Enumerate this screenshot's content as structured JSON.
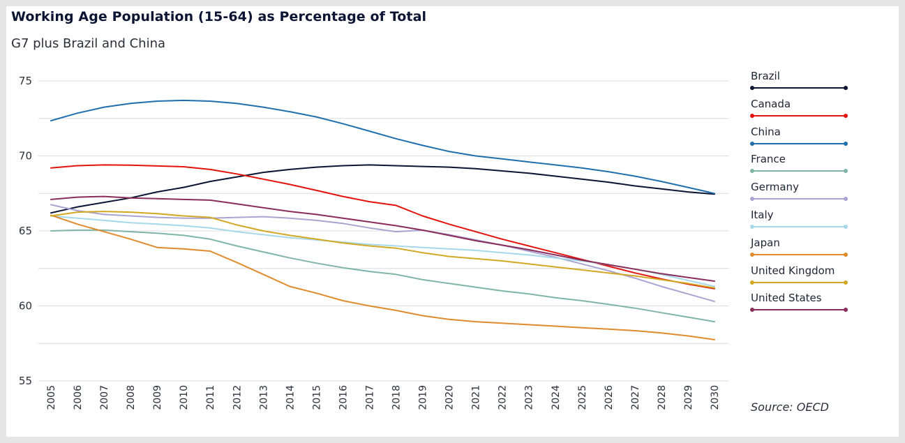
{
  "chart_data": {
    "type": "line",
    "title": "Working Age Population (15-64) as Percentage of Total",
    "subtitle": "G7 plus Brazil and China",
    "xlabel": "",
    "ylabel": "",
    "ylim": [
      55,
      75
    ],
    "yticks": [
      "55",
      "60",
      "65",
      "70",
      "75"
    ],
    "grid": true,
    "legend_placement": "right",
    "x": [
      "2005",
      "2006",
      "2007",
      "2008",
      "2009",
      "2010",
      "2011",
      "2012",
      "2013",
      "2014",
      "2015",
      "2016",
      "2017",
      "2018",
      "2019",
      "2020",
      "2021",
      "2022",
      "2023",
      "2024",
      "2025",
      "2026",
      "2027",
      "2028",
      "2029",
      "2030"
    ],
    "series": [
      {
        "name": "Brazil",
        "color": "#0b1533",
        "values": [
          66.2,
          66.6,
          66.9,
          67.2,
          67.6,
          67.9,
          68.3,
          68.6,
          68.9,
          69.1,
          69.25,
          69.35,
          69.4,
          69.35,
          69.3,
          69.25,
          69.15,
          69.0,
          68.85,
          68.65,
          68.45,
          68.25,
          68.0,
          67.8,
          67.6,
          67.45
        ]
      },
      {
        "name": "Canada",
        "color": "#e3120b",
        "values": [
          69.2,
          69.35,
          69.4,
          69.38,
          69.33,
          69.28,
          69.1,
          68.8,
          68.45,
          68.1,
          67.7,
          67.3,
          66.95,
          66.7,
          66.0,
          65.45,
          64.95,
          64.45,
          64.0,
          63.55,
          63.1,
          62.65,
          62.2,
          61.8,
          61.45,
          61.15
        ]
      },
      {
        "name": "China",
        "color": "#1f6fae",
        "values": [
          72.35,
          72.85,
          73.25,
          73.5,
          73.65,
          73.7,
          73.65,
          73.5,
          73.25,
          72.95,
          72.6,
          72.15,
          71.65,
          71.15,
          70.7,
          70.3,
          70.0,
          69.8,
          69.6,
          69.4,
          69.2,
          68.95,
          68.65,
          68.3,
          67.9,
          67.5
        ]
      },
      {
        "name": "France",
        "color": "#7fb5a8",
        "values": [
          65.0,
          65.05,
          65.05,
          64.95,
          64.85,
          64.7,
          64.45,
          64.0,
          63.6,
          63.2,
          62.85,
          62.55,
          62.3,
          62.1,
          61.75,
          61.5,
          61.25,
          61.0,
          60.8,
          60.55,
          60.35,
          60.1,
          59.85,
          59.55,
          59.25,
          58.95
        ]
      },
      {
        "name": "Germany",
        "color": "#a8a4d2",
        "values": [
          66.75,
          66.35,
          66.1,
          66.0,
          65.9,
          65.85,
          65.85,
          65.9,
          65.95,
          65.85,
          65.7,
          65.5,
          65.2,
          64.95,
          65.05,
          64.75,
          64.4,
          64.05,
          63.65,
          63.25,
          62.8,
          62.35,
          61.85,
          61.3,
          60.8,
          60.3
        ]
      },
      {
        "name": "Italy",
        "color": "#a6d8ea",
        "values": [
          66.0,
          65.85,
          65.7,
          65.55,
          65.45,
          65.35,
          65.2,
          64.95,
          64.75,
          64.55,
          64.4,
          64.25,
          64.1,
          64.0,
          63.9,
          63.8,
          63.7,
          63.55,
          63.4,
          63.2,
          63.0,
          62.75,
          62.45,
          62.1,
          61.7,
          61.3
        ]
      },
      {
        "name": "Japan",
        "color": "#e08a2c",
        "values": [
          66.05,
          65.45,
          64.95,
          64.45,
          63.9,
          63.8,
          63.65,
          62.9,
          62.1,
          61.3,
          60.85,
          60.35,
          60.0,
          59.7,
          59.35,
          59.1,
          58.95,
          58.85,
          58.75,
          58.65,
          58.55,
          58.45,
          58.35,
          58.2,
          58.0,
          57.75
        ]
      },
      {
        "name": "United Kingdom",
        "color": "#d2a722",
        "values": [
          66.0,
          66.25,
          66.3,
          66.25,
          66.15,
          66.0,
          65.9,
          65.4,
          65.0,
          64.7,
          64.45,
          64.2,
          64.0,
          63.85,
          63.55,
          63.3,
          63.15,
          63.0,
          62.8,
          62.6,
          62.4,
          62.2,
          62.0,
          61.75,
          61.5,
          61.2
        ]
      },
      {
        "name": "United States",
        "color": "#8a2c5a",
        "values": [
          67.1,
          67.25,
          67.3,
          67.2,
          67.15,
          67.1,
          67.05,
          66.8,
          66.55,
          66.3,
          66.1,
          65.85,
          65.6,
          65.35,
          65.05,
          64.7,
          64.35,
          64.05,
          63.75,
          63.4,
          63.05,
          62.75,
          62.45,
          62.15,
          61.9,
          61.65
        ]
      }
    ],
    "source": "Source: OECD"
  }
}
